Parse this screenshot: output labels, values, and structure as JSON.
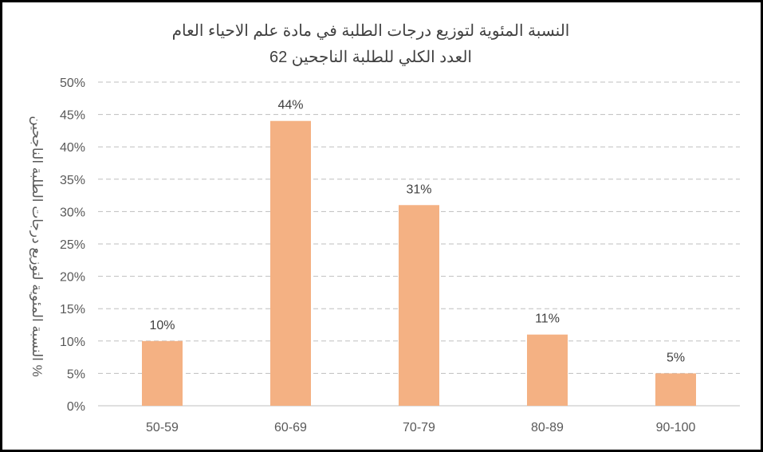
{
  "chart_data": {
    "type": "bar",
    "title": "النسبة المئوية لتوزيع درجات الطلبة في مادة علم الاحياء العام",
    "subtitle": "العدد الكلي للطلبة الناجحين 62",
    "ylabel": "النسبة المئوية لتوزيع درجات الطلبة الناجحين %",
    "xlabel": "",
    "categories": [
      "50-59",
      "60-69",
      "70-79",
      "80-89",
      "90-100"
    ],
    "values": [
      10,
      44,
      31,
      11,
      5
    ],
    "data_labels": [
      "10%",
      "44%",
      "31%",
      "11%",
      "5%"
    ],
    "ylim": [
      0,
      50
    ],
    "yticks": [
      "0%",
      "5%",
      "10%",
      "15%",
      "20%",
      "25%",
      "30%",
      "35%",
      "40%",
      "45%",
      "50%"
    ],
    "grid": true,
    "legend": "none",
    "colors": {
      "bar": "#F4B183",
      "grid": "#BFBFBF",
      "axis": "#595959"
    }
  }
}
